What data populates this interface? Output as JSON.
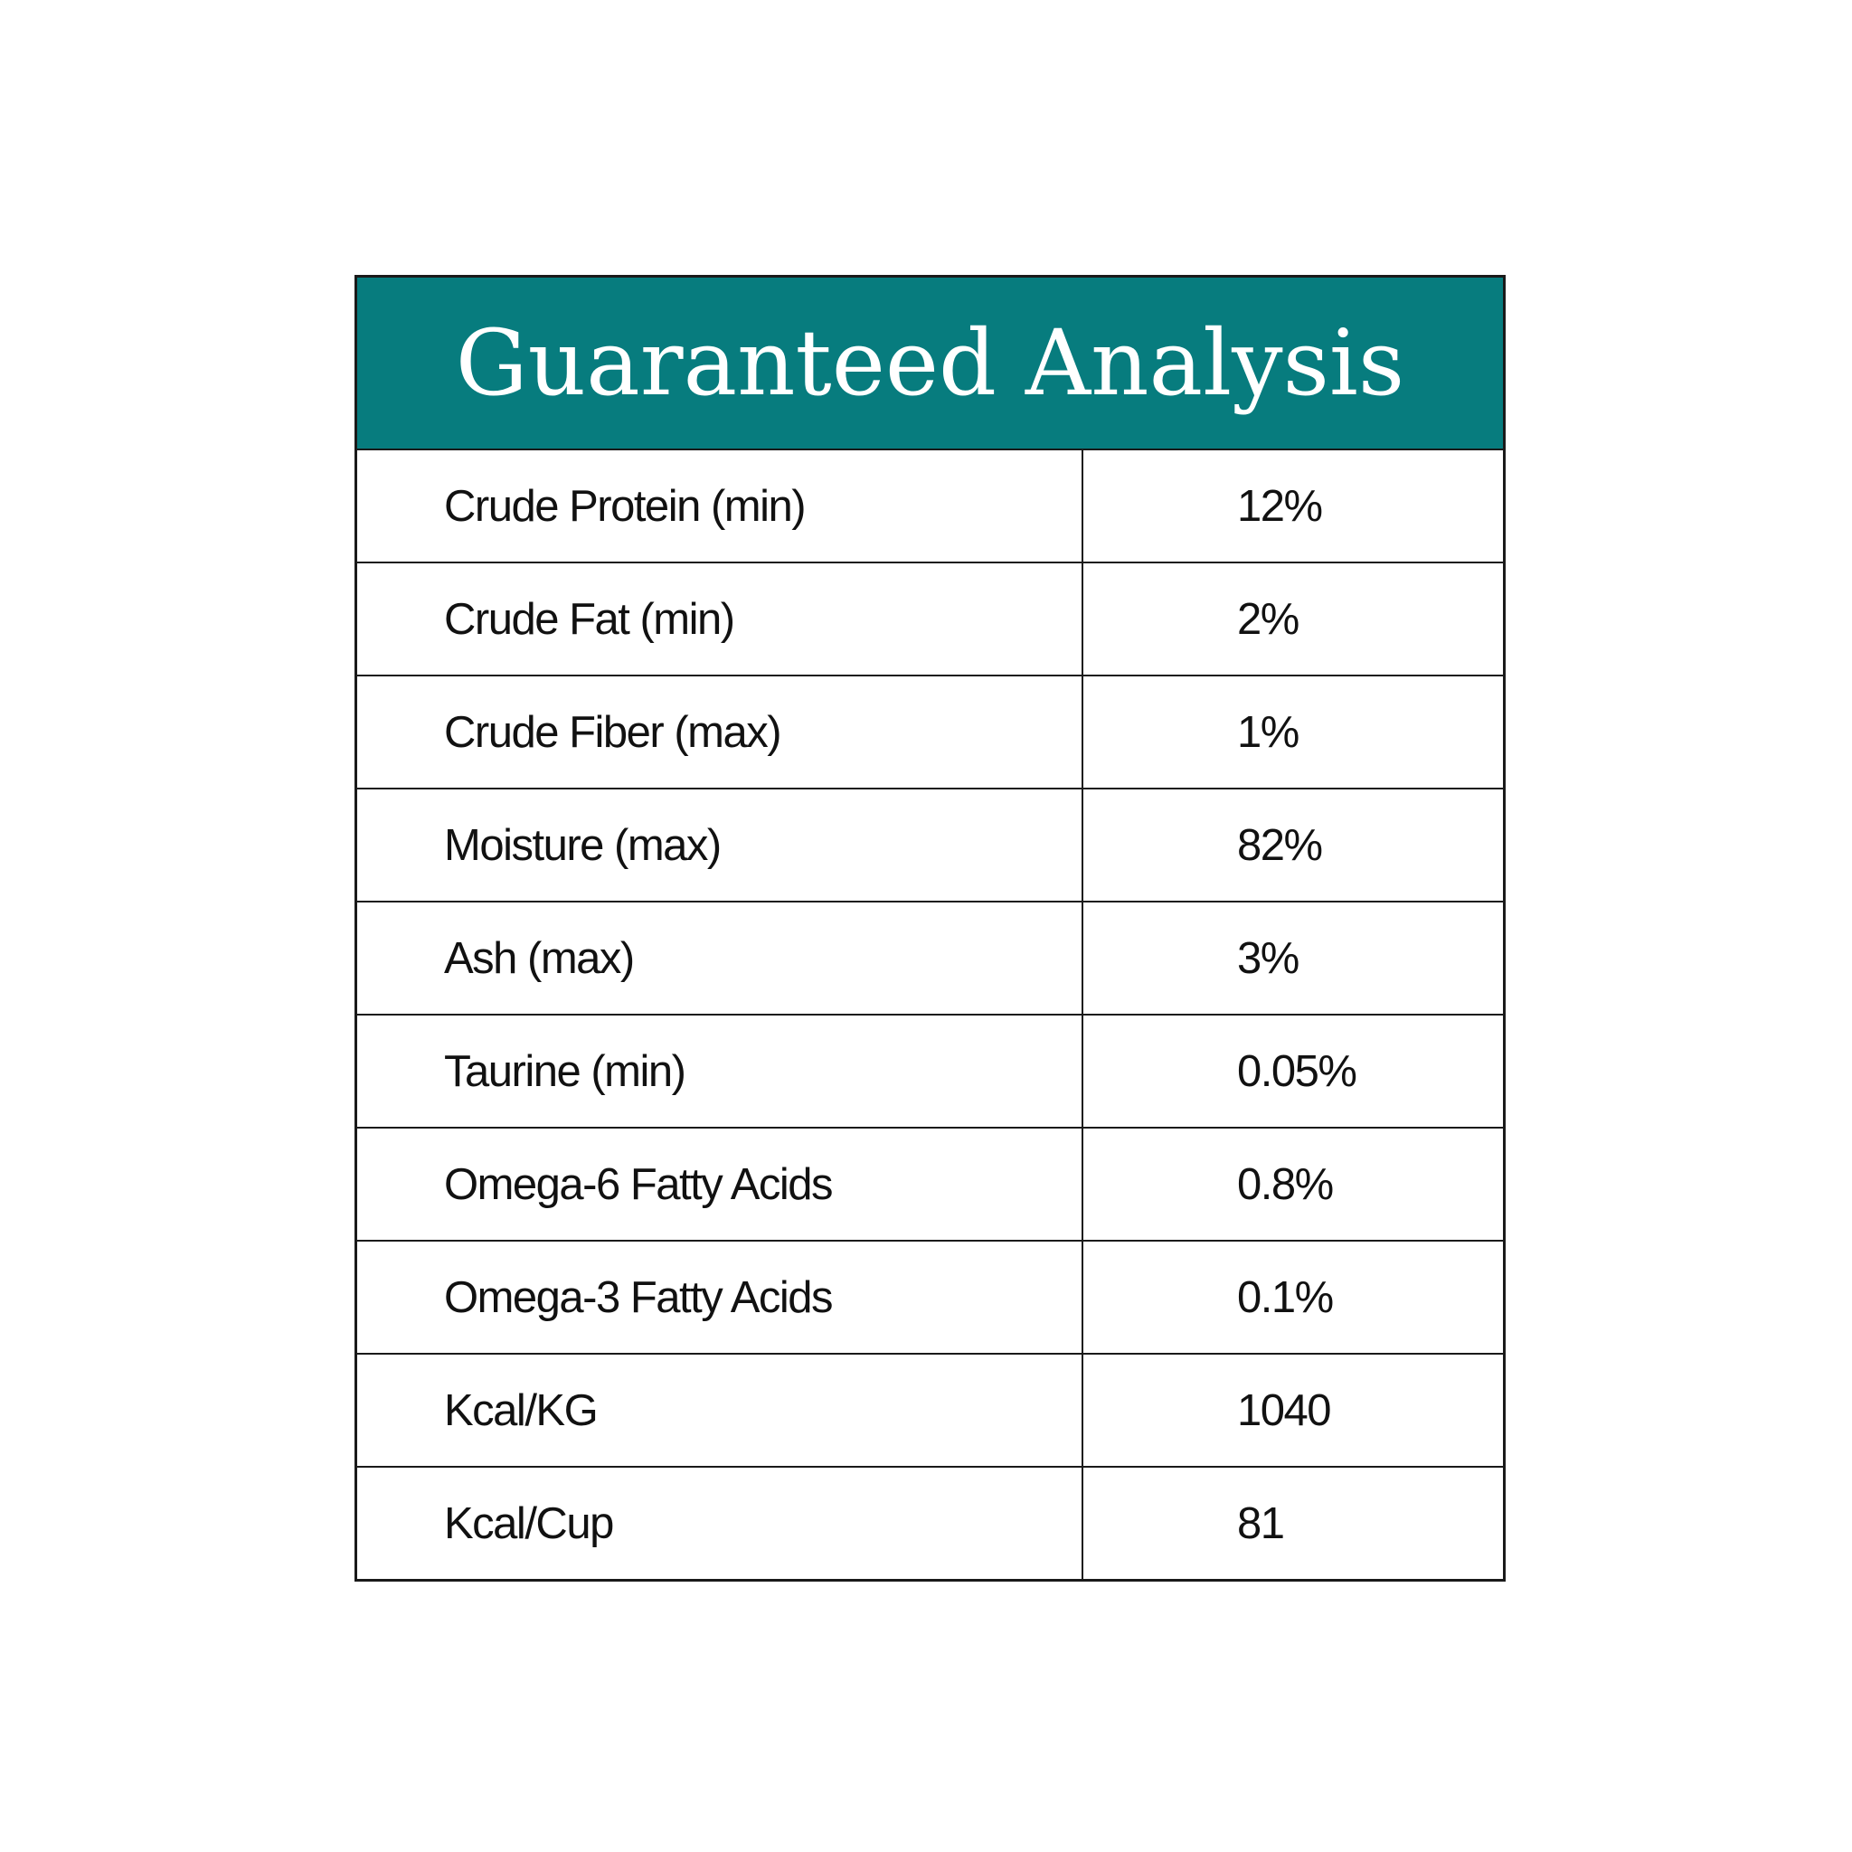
{
  "table": {
    "title": "Guaranteed Analysis",
    "rows": [
      [
        "Crude Protein (min)",
        "12%"
      ],
      [
        "Crude Fat (min)",
        "2%"
      ],
      [
        "Crude Fiber (max)",
        "1%"
      ],
      [
        "Moisture (max)",
        "82%"
      ],
      [
        "Ash (max)",
        "3%"
      ],
      [
        "Taurine (min)",
        "0.05%"
      ],
      [
        "Omega-6 Fatty Acids",
        "0.8%"
      ],
      [
        "Omega-3 Fatty Acids",
        "0.1%"
      ],
      [
        "Kcal/KG",
        "1040"
      ],
      [
        "Kcal/Cup",
        "81"
      ]
    ]
  }
}
